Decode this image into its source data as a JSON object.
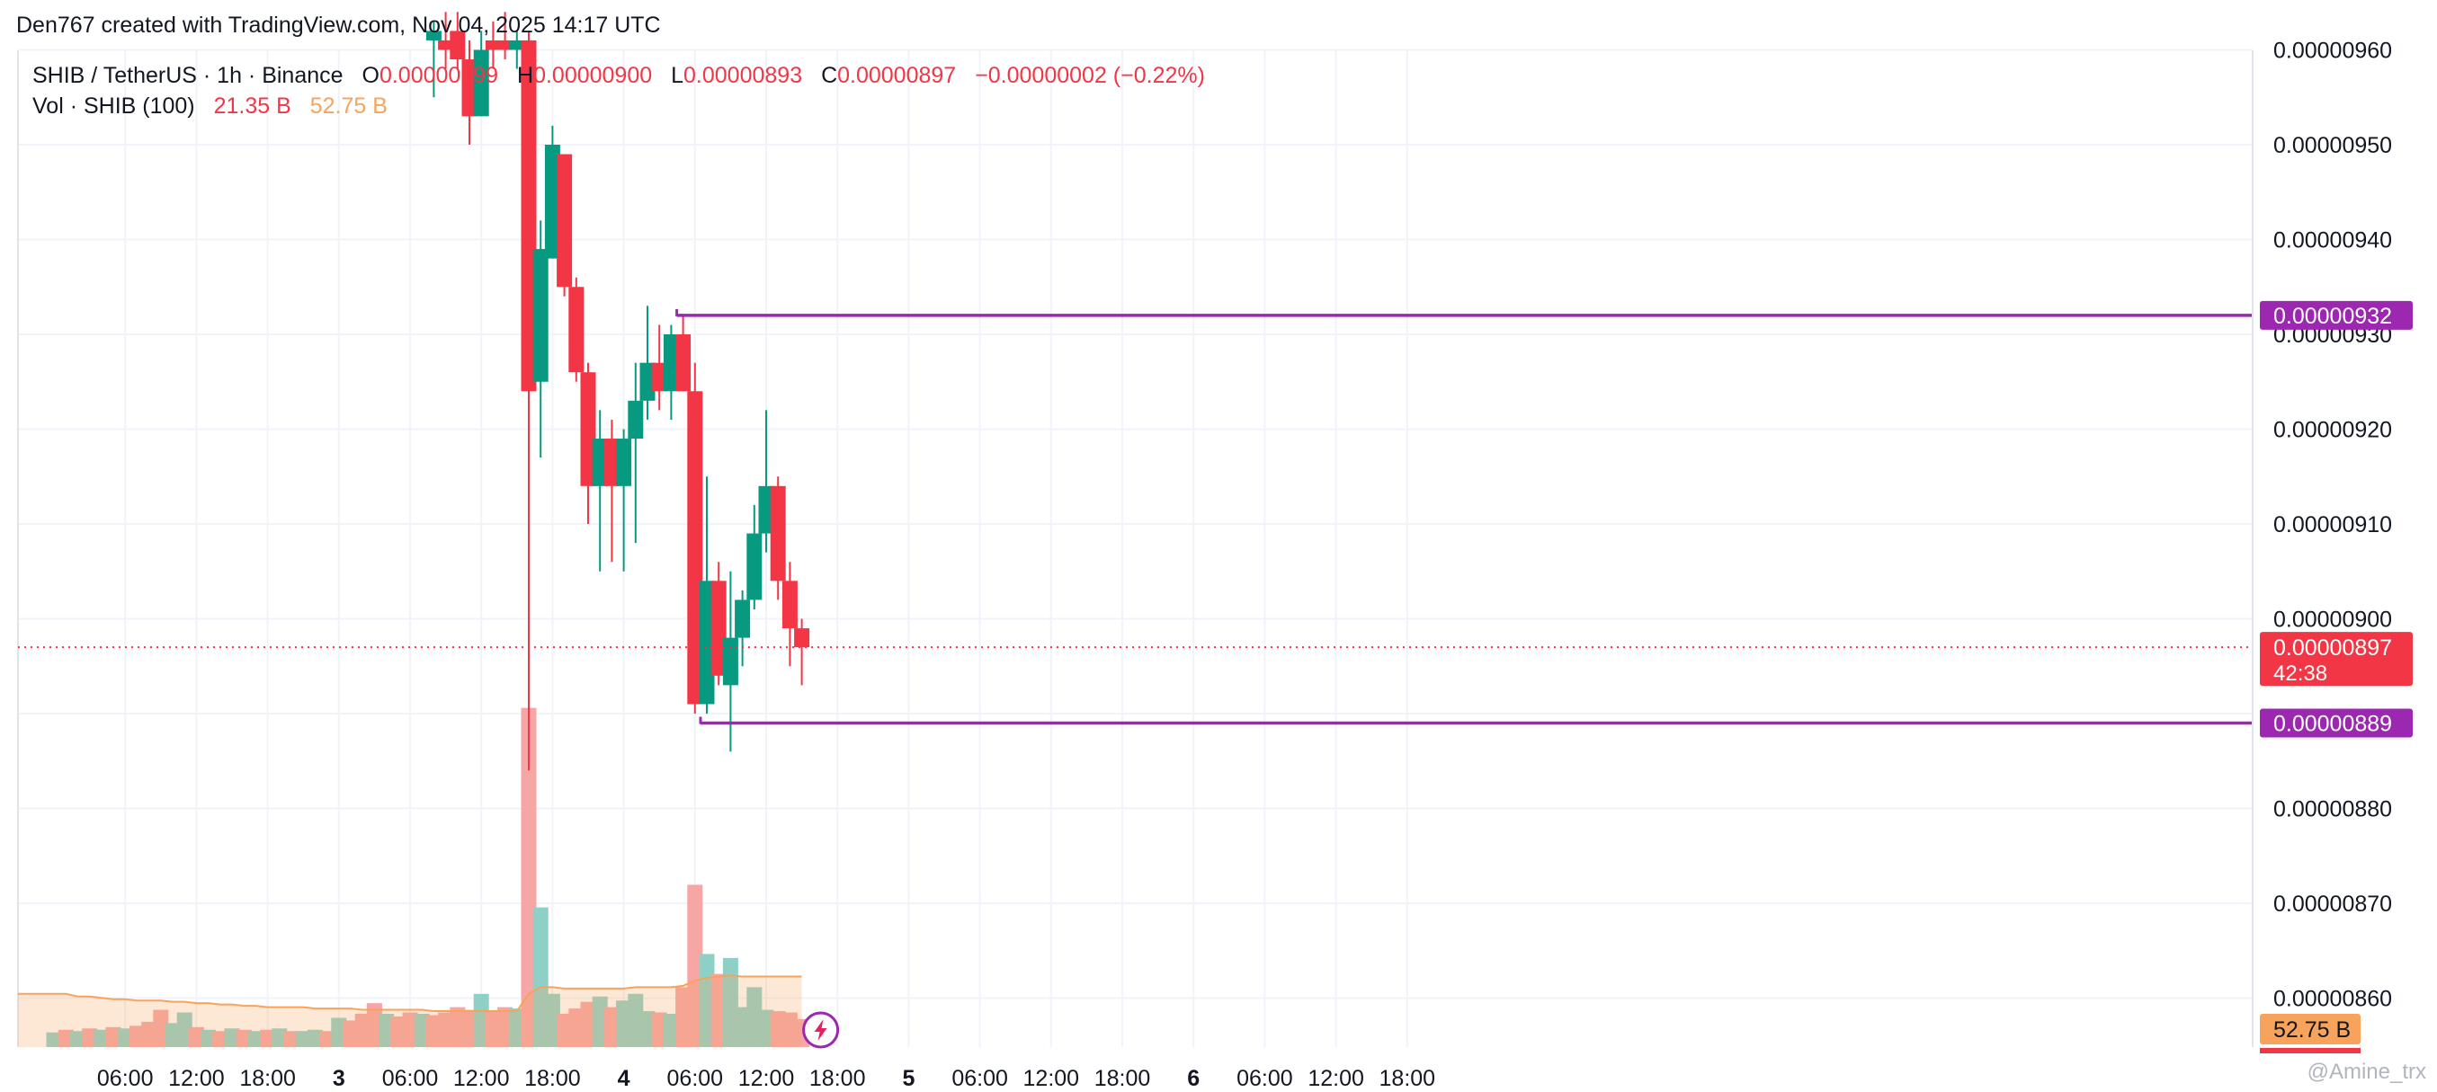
{
  "attribution": "Den767 created with TradingView.com, Nov 04, 2025 14:17 UTC",
  "legend": {
    "symbol": "SHIB / TetherUS · 1h · Binance",
    "o_label": "O",
    "o_value": "0.00000899",
    "h_label": "H",
    "h_value": "0.00000900",
    "l_label": "L",
    "l_value": "0.00000893",
    "c_label": "C",
    "c_value": "0.00000897",
    "change": "−0.00000002 (−0.22%)",
    "volume_label": "Vol · SHIB (100)",
    "volume_value": "21.35 B",
    "volume_ma_value": "52.75 B"
  },
  "watermark": "@Amine_trx",
  "colors": {
    "up": "#089981",
    "down": "#f23645",
    "level": "#9c27b0",
    "vol_up": "#8fd0c6",
    "vol_down": "#f7a6a6",
    "vol_ma": "#f7a35c"
  },
  "chart_data": {
    "type": "candlestick",
    "y_axis": {
      "range": [
        8.5e-06,
        9.6e-06
      ],
      "ticks": [
        "0.00000960",
        "0.00000950",
        "0.00000940",
        "0.00000930",
        "0.00000920",
        "0.00000910",
        "0.00000900",
        "0.00000880",
        "0.00000870",
        "0.00000860"
      ],
      "position": "right"
    },
    "x_axis": {
      "ticks": [
        {
          "label": "06:00",
          "hour": 6
        },
        {
          "label": "12:00",
          "hour": 12
        },
        {
          "label": "18:00",
          "hour": 18
        },
        {
          "label": "3",
          "hour": 24,
          "bold": true
        },
        {
          "label": "06:00",
          "hour": 30
        },
        {
          "label": "12:00",
          "hour": 36
        },
        {
          "label": "18:00",
          "hour": 42
        },
        {
          "label": "4",
          "hour": 48,
          "bold": true
        },
        {
          "label": "06:00",
          "hour": 54
        },
        {
          "label": "12:00",
          "hour": 60
        },
        {
          "label": "18:00",
          "hour": 66
        },
        {
          "label": "5",
          "hour": 72,
          "bold": true
        },
        {
          "label": "06:00",
          "hour": 78
        },
        {
          "label": "12:00",
          "hour": 84
        },
        {
          "label": "18:00",
          "hour": 90
        },
        {
          "label": "6",
          "hour": 96,
          "bold": true
        },
        {
          "label": "06:00",
          "hour": 102
        },
        {
          "label": "12:00",
          "hour": 108
        },
        {
          "label": "18:00",
          "hour": 114
        }
      ]
    },
    "grid": true,
    "candles": [
      {
        "t": 32,
        "o": 9.61e-06,
        "h": 9.63e-06,
        "l": 9.55e-06,
        "c": 9.62e-06
      },
      {
        "t": 33,
        "o": 9.61e-06,
        "h": 9.64e-06,
        "l": 9.58e-06,
        "c": 9.6e-06
      },
      {
        "t": 34,
        "o": 9.62e-06,
        "h": 9.64e-06,
        "l": 9.58e-06,
        "c": 9.59e-06
      },
      {
        "t": 35,
        "o": 9.59e-06,
        "h": 9.61e-06,
        "l": 9.5e-06,
        "c": 9.53e-06
      },
      {
        "t": 36,
        "o": 9.53e-06,
        "h": 9.62e-06,
        "l": 9.53e-06,
        "c": 9.6e-06
      },
      {
        "t": 37,
        "o": 9.61e-06,
        "h": 9.63e-06,
        "l": 9.58e-06,
        "c": 9.6e-06
      },
      {
        "t": 38,
        "o": 9.61e-06,
        "h": 9.64e-06,
        "l": 9.59e-06,
        "c": 9.6e-06
      },
      {
        "t": 39,
        "o": 9.6e-06,
        "h": 9.62e-06,
        "l": 9.58e-06,
        "c": 9.61e-06
      },
      {
        "t": 40,
        "o": 9.61e-06,
        "h": 9.62e-06,
        "l": 8.84e-06,
        "c": 9.24e-06
      },
      {
        "t": 41,
        "o": 9.25e-06,
        "h": 9.42e-06,
        "l": 9.17e-06,
        "c": 9.39e-06
      },
      {
        "t": 42,
        "o": 9.38e-06,
        "h": 9.52e-06,
        "l": 9.38e-06,
        "c": 9.5e-06
      },
      {
        "t": 43,
        "o": 9.49e-06,
        "h": 9.49e-06,
        "l": 9.34e-06,
        "c": 9.35e-06
      },
      {
        "t": 44,
        "o": 9.35e-06,
        "h": 9.36e-06,
        "l": 9.25e-06,
        "c": 9.26e-06
      },
      {
        "t": 45,
        "o": 9.26e-06,
        "h": 9.27e-06,
        "l": 9.1e-06,
        "c": 9.14e-06
      },
      {
        "t": 46,
        "o": 9.14e-06,
        "h": 9.22e-06,
        "l": 9.05e-06,
        "c": 9.19e-06
      },
      {
        "t": 47,
        "o": 9.19e-06,
        "h": 9.21e-06,
        "l": 9.06e-06,
        "c": 9.14e-06
      },
      {
        "t": 48,
        "o": 9.14e-06,
        "h": 9.2e-06,
        "l": 9.05e-06,
        "c": 9.19e-06
      },
      {
        "t": 49,
        "o": 9.19e-06,
        "h": 9.27e-06,
        "l": 9.08e-06,
        "c": 9.23e-06
      },
      {
        "t": 50,
        "o": 9.23e-06,
        "h": 9.33e-06,
        "l": 9.21e-06,
        "c": 9.27e-06
      },
      {
        "t": 51,
        "o": 9.27e-06,
        "h": 9.31e-06,
        "l": 9.22e-06,
        "c": 9.24e-06
      },
      {
        "t": 52,
        "o": 9.24e-06,
        "h": 9.31e-06,
        "l": 9.21e-06,
        "c": 9.3e-06
      },
      {
        "t": 53,
        "o": 9.3e-06,
        "h": 9.32e-06,
        "l": 9.24e-06,
        "c": 9.24e-06
      },
      {
        "t": 54,
        "o": 9.24e-06,
        "h": 9.27e-06,
        "l": 8.9e-06,
        "c": 8.91e-06
      },
      {
        "t": 55,
        "o": 8.91e-06,
        "h": 9.15e-06,
        "l": 8.9e-06,
        "c": 9.04e-06
      },
      {
        "t": 56,
        "o": 9.04e-06,
        "h": 9.06e-06,
        "l": 8.93e-06,
        "c": 8.94e-06
      },
      {
        "t": 57,
        "o": 8.93e-06,
        "h": 9.05e-06,
        "l": 8.86e-06,
        "c": 8.98e-06
      },
      {
        "t": 58,
        "o": 8.98e-06,
        "h": 9.03e-06,
        "l": 8.95e-06,
        "c": 9.02e-06
      },
      {
        "t": 59,
        "o": 9.02e-06,
        "h": 9.12e-06,
        "l": 9.01e-06,
        "c": 9.09e-06
      },
      {
        "t": 60,
        "o": 9.09e-06,
        "h": 9.22e-06,
        "l": 9.07e-06,
        "c": 9.14e-06
      },
      {
        "t": 61,
        "o": 9.14e-06,
        "h": 9.15e-06,
        "l": 9.02e-06,
        "c": 9.04e-06
      },
      {
        "t": 62,
        "o": 9.04e-06,
        "h": 9.06e-06,
        "l": 8.95e-06,
        "c": 8.99e-06
      },
      {
        "t": 63,
        "o": 8.99e-06,
        "h": 9e-06,
        "l": 8.93e-06,
        "c": 8.97e-06
      }
    ],
    "volume_unit": "B",
    "volume_ma_period": 20,
    "volume": [
      {
        "t": 0,
        "v": 11,
        "up": true
      },
      {
        "t": 1,
        "v": 13,
        "up": false
      },
      {
        "t": 2,
        "v": 12,
        "up": true
      },
      {
        "t": 3,
        "v": 14,
        "up": false
      },
      {
        "t": 4,
        "v": 13,
        "up": true
      },
      {
        "t": 5,
        "v": 15,
        "up": false
      },
      {
        "t": 6,
        "v": 14,
        "up": true
      },
      {
        "t": 7,
        "v": 16,
        "up": false
      },
      {
        "t": 8,
        "v": 19,
        "up": false
      },
      {
        "t": 9,
        "v": 28,
        "up": false
      },
      {
        "t": 10,
        "v": 18,
        "up": true
      },
      {
        "t": 11,
        "v": 26,
        "up": true
      },
      {
        "t": 12,
        "v": 15,
        "up": false
      },
      {
        "t": 13,
        "v": 13,
        "up": true
      },
      {
        "t": 14,
        "v": 12,
        "up": false
      },
      {
        "t": 15,
        "v": 14,
        "up": true
      },
      {
        "t": 16,
        "v": 13,
        "up": false
      },
      {
        "t": 17,
        "v": 12,
        "up": true
      },
      {
        "t": 18,
        "v": 13,
        "up": false
      },
      {
        "t": 19,
        "v": 14,
        "up": true
      },
      {
        "t": 20,
        "v": 12,
        "up": false
      },
      {
        "t": 21,
        "v": 12,
        "up": true
      },
      {
        "t": 22,
        "v": 13,
        "up": true
      },
      {
        "t": 23,
        "v": 12,
        "up": false
      },
      {
        "t": 24,
        "v": 22,
        "up": true
      },
      {
        "t": 25,
        "v": 20,
        "up": false
      },
      {
        "t": 26,
        "v": 25,
        "up": false
      },
      {
        "t": 27,
        "v": 33,
        "up": false
      },
      {
        "t": 28,
        "v": 25,
        "up": true
      },
      {
        "t": 29,
        "v": 23,
        "up": false
      },
      {
        "t": 30,
        "v": 26,
        "up": false
      },
      {
        "t": 31,
        "v": 25,
        "up": true
      },
      {
        "t": 32,
        "v": 24,
        "up": false
      },
      {
        "t": 33,
        "v": 26,
        "up": false
      },
      {
        "t": 34,
        "v": 30,
        "up": false
      },
      {
        "t": 35,
        "v": 28,
        "up": false
      },
      {
        "t": 36,
        "v": 40,
        "up": true
      },
      {
        "t": 37,
        "v": 27,
        "up": false
      },
      {
        "t": 38,
        "v": 30,
        "up": false
      },
      {
        "t": 39,
        "v": 29,
        "up": true
      },
      {
        "t": 40,
        "v": 255,
        "up": false
      },
      {
        "t": 41,
        "v": 105,
        "up": true
      },
      {
        "t": 42,
        "v": 40,
        "up": true
      },
      {
        "t": 43,
        "v": 25,
        "up": false
      },
      {
        "t": 44,
        "v": 29,
        "up": false
      },
      {
        "t": 45,
        "v": 34,
        "up": false
      },
      {
        "t": 46,
        "v": 38,
        "up": true
      },
      {
        "t": 47,
        "v": 30,
        "up": false
      },
      {
        "t": 48,
        "v": 35,
        "up": true
      },
      {
        "t": 49,
        "v": 40,
        "up": true
      },
      {
        "t": 50,
        "v": 27,
        "up": true
      },
      {
        "t": 51,
        "v": 26,
        "up": false
      },
      {
        "t": 52,
        "v": 25,
        "up": true
      },
      {
        "t": 53,
        "v": 45,
        "up": false
      },
      {
        "t": 54,
        "v": 122,
        "up": false
      },
      {
        "t": 55,
        "v": 70,
        "up": true
      },
      {
        "t": 56,
        "v": 55,
        "up": false
      },
      {
        "t": 57,
        "v": 67,
        "up": true
      },
      {
        "t": 58,
        "v": 30,
        "up": true
      },
      {
        "t": 59,
        "v": 45,
        "up": true
      },
      {
        "t": 60,
        "v": 28,
        "up": true
      },
      {
        "t": 61,
        "v": 27,
        "up": false
      },
      {
        "t": 62,
        "v": 26,
        "up": false
      },
      {
        "t": 63,
        "v": 21,
        "up": false
      }
    ],
    "volume_ma": [
      40,
      40,
      38,
      38,
      37,
      36,
      36,
      35,
      35,
      35,
      34,
      34,
      33,
      33,
      32,
      32,
      31,
      31,
      30,
      30,
      30,
      30,
      29,
      29,
      29,
      29,
      28,
      28,
      28,
      28,
      28,
      28,
      27,
      27,
      27,
      27,
      27,
      27,
      27,
      27,
      40,
      45,
      45,
      44,
      44,
      44,
      44,
      44,
      44,
      45,
      45,
      45,
      45,
      46,
      50,
      52,
      53,
      54,
      53,
      53,
      53,
      53,
      53,
      53
    ],
    "horizontal_levels": [
      {
        "price": 9.32e-06,
        "label": "0.00000932",
        "from_t": 53
      },
      {
        "price": 8.89e-06,
        "label": "0.00000889",
        "from_t": 55
      }
    ],
    "last_price": {
      "price": 8.97e-06,
      "label": "0.00000897",
      "countdown": "42:38"
    },
    "volume_label": {
      "label": "52.75 B"
    }
  }
}
